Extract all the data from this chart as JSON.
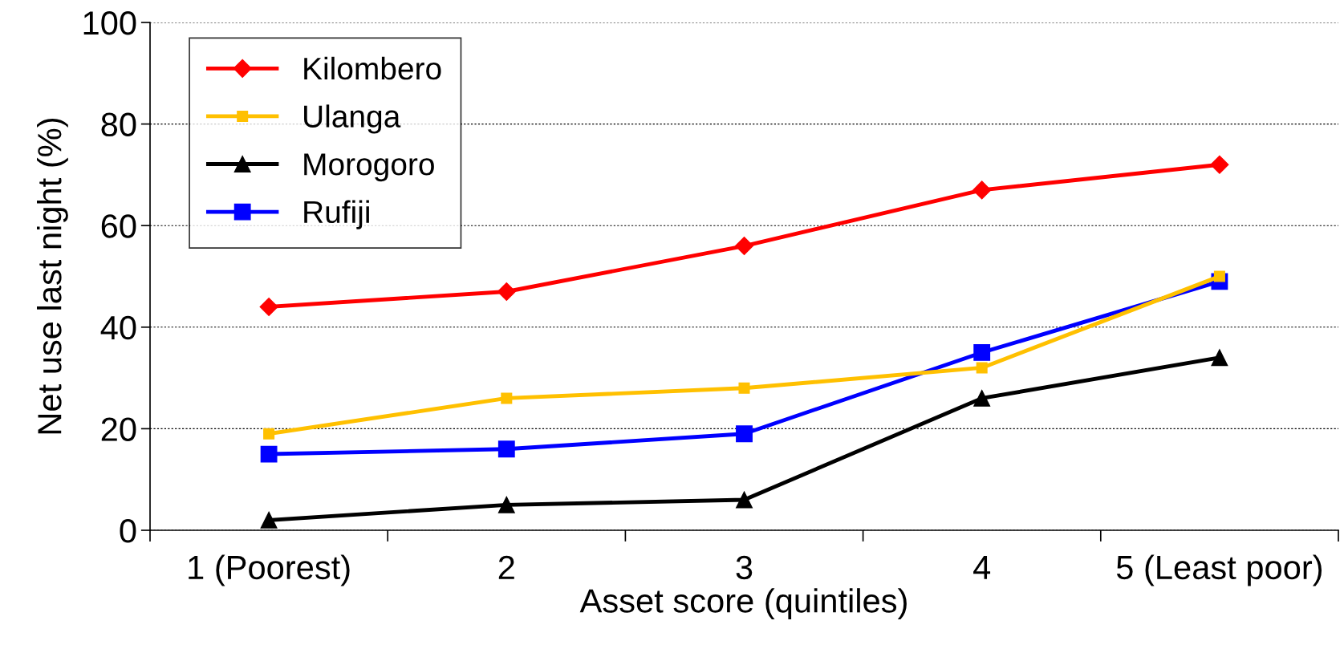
{
  "chart_data": {
    "type": "line",
    "xlabel": "Asset score (quintiles)",
    "ylabel": "Net use last night (%)",
    "categories": [
      "1 (Poorest)",
      "2",
      "3",
      "4",
      "5 (Least poor)"
    ],
    "ylim": [
      0,
      100
    ],
    "yticks": [
      0,
      20,
      40,
      60,
      80,
      100
    ],
    "grid": "y",
    "legend": "top left",
    "line_style": "solid",
    "series": [
      {
        "name": "Kilombero",
        "color": "#ff0000",
        "marker": "diamond",
        "values": [
          44,
          47,
          56,
          67,
          72
        ]
      },
      {
        "name": "Ulanga",
        "color": "#ffc000",
        "marker": "square",
        "values": [
          19,
          26,
          28,
          32,
          50
        ]
      },
      {
        "name": "Morogoro",
        "color": "#000000",
        "marker": "triangle",
        "values": [
          2,
          5,
          6,
          26,
          34
        ]
      },
      {
        "name": "Rufiji",
        "color": "#0000ff",
        "marker": "square",
        "values": [
          15,
          16,
          19,
          35,
          49
        ]
      }
    ]
  }
}
